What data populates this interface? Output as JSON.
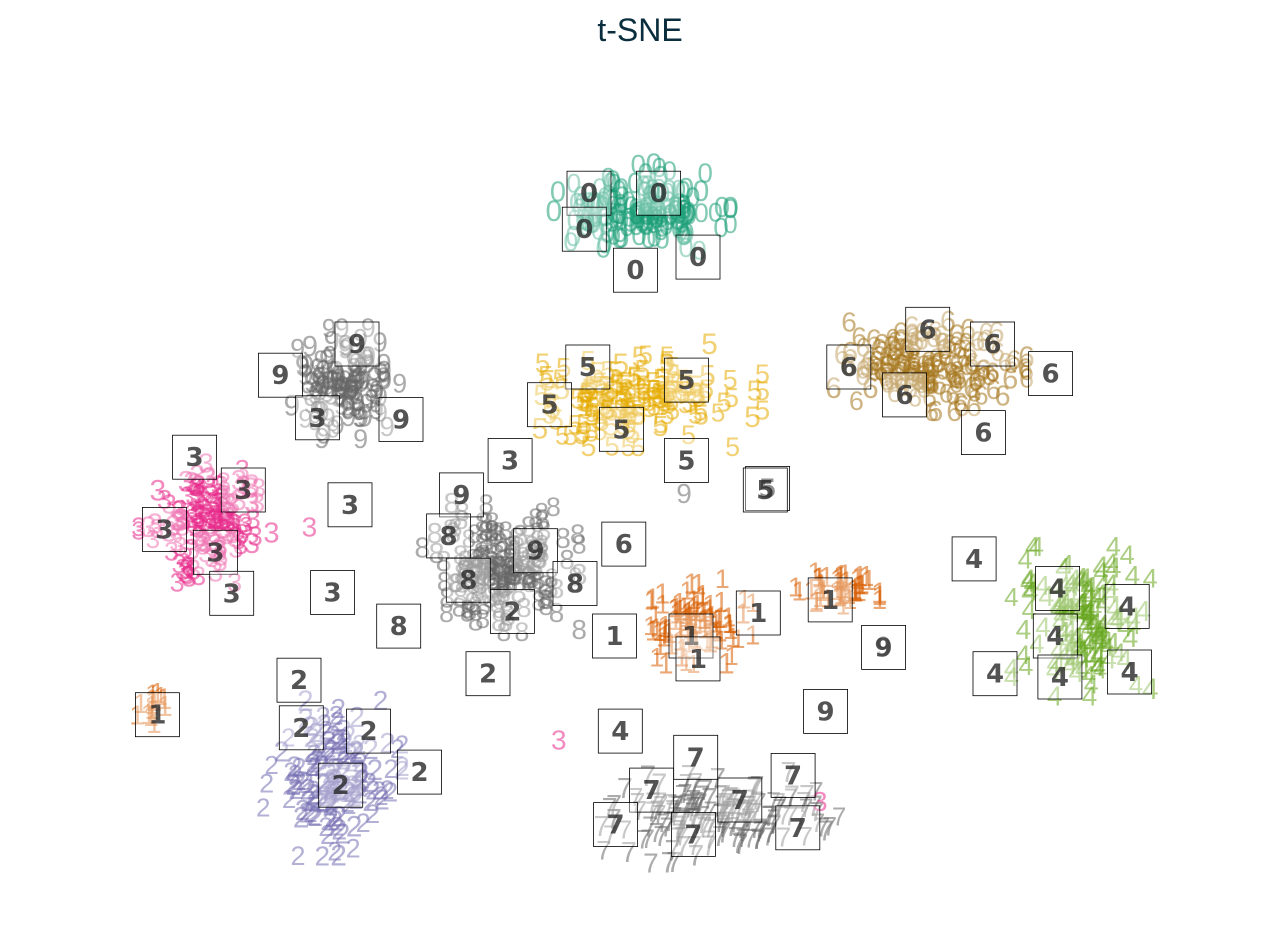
{
  "title": "t-SNE",
  "chart_data": {
    "type": "scatter",
    "title": "t-SNE",
    "xlabel": "",
    "ylabel": "",
    "xlim": [
      0,
      100
    ],
    "ylim": [
      0,
      100
    ],
    "grid": false,
    "axes_visible": false,
    "marker": "digit label",
    "colors": {
      "0": "#1b9e77",
      "1": "#d95f02",
      "2": "#7570b3",
      "3": "#e7298a",
      "4": "#66a61e",
      "5": "#e6ab02",
      "6": "#a6761d",
      "7": "#666666",
      "8": "#666666",
      "9": "#666666"
    },
    "clusters": [
      {
        "label": "0",
        "center": [
          50,
          84
        ],
        "spread": [
          6.0,
          4.4
        ],
        "count": 160
      },
      {
        "label": "1",
        "center": [
          54.5,
          34
        ],
        "spread": [
          4.0,
          4.0
        ],
        "count": 90
      },
      {
        "label": "1",
        "center": [
          67,
          38
        ],
        "spread": [
          2.8,
          2.2
        ],
        "count": 45
      },
      {
        "label": "1",
        "center": [
          8,
          23.5
        ],
        "spread": [
          1.2,
          1.5
        ],
        "count": 14
      },
      {
        "label": "2",
        "center": [
          23.5,
          15
        ],
        "spread": [
          4.6,
          7.4
        ],
        "count": 150
      },
      {
        "label": "3",
        "center": [
          12.5,
          46
        ],
        "spread": [
          4.4,
          5.6
        ],
        "count": 140
      },
      {
        "label": "4",
        "center": [
          88,
          34
        ],
        "spread": [
          4.6,
          7.0
        ],
        "count": 140
      },
      {
        "label": "5",
        "center": [
          49.5,
          61.5
        ],
        "spread": [
          8.5,
          4.8
        ],
        "count": 150
      },
      {
        "label": "6",
        "center": [
          75,
          65
        ],
        "spread": [
          6.4,
          4.2
        ],
        "count": 150
      },
      {
        "label": "7",
        "center": [
          56.5,
          10
        ],
        "spread": [
          8.2,
          4.2
        ],
        "count": 160
      },
      {
        "label": "8",
        "center": [
          38,
          40.5
        ],
        "spread": [
          5.2,
          6.0
        ],
        "count": 160
      },
      {
        "label": "9",
        "center": [
          24.5,
          63
        ],
        "spread": [
          4.2,
          5.2
        ],
        "count": 110
      }
    ],
    "points": [
      {
        "label": "3",
        "x": 43,
        "y": 19.5
      },
      {
        "label": "3",
        "x": 65.5,
        "y": 12
      },
      {
        "label": "3",
        "x": 21.5,
        "y": 45.5
      },
      {
        "label": "9",
        "x": 53.8,
        "y": 49.6
      },
      {
        "label": "9",
        "x": 71,
        "y": 31
      }
    ],
    "thumbnails": [
      {
        "label": "0",
        "x": 45.6,
        "y": 86.2
      },
      {
        "label": "0",
        "x": 51.6,
        "y": 86.2
      },
      {
        "label": "0",
        "x": 45.2,
        "y": 81.8
      },
      {
        "label": "0",
        "x": 55.0,
        "y": 78.4
      },
      {
        "label": "0",
        "x": 49.6,
        "y": 76.8
      },
      {
        "label": "6",
        "x": 74.8,
        "y": 69.6
      },
      {
        "label": "6",
        "x": 80.4,
        "y": 67.8
      },
      {
        "label": "6",
        "x": 68.0,
        "y": 65.0
      },
      {
        "label": "6",
        "x": 85.4,
        "y": 64.2
      },
      {
        "label": "6",
        "x": 72.8,
        "y": 61.6
      },
      {
        "label": "6",
        "x": 79.6,
        "y": 57.0
      },
      {
        "label": "9",
        "x": 25.6,
        "y": 67.8
      },
      {
        "label": "9",
        "x": 19.0,
        "y": 64.0
      },
      {
        "label": "3",
        "x": 22.2,
        "y": 58.8
      },
      {
        "label": "9",
        "x": 29.4,
        "y": 58.6
      },
      {
        "label": "5",
        "x": 45.5,
        "y": 65.0
      },
      {
        "label": "5",
        "x": 54.0,
        "y": 63.4
      },
      {
        "label": "5",
        "x": 42.2,
        "y": 60.4
      },
      {
        "label": "5",
        "x": 48.4,
        "y": 57.4
      },
      {
        "label": "5",
        "x": 54.0,
        "y": 53.6
      },
      {
        "label": "5",
        "x": 61.0,
        "y": 50.2
      },
      {
        "label": "3",
        "x": 11.6,
        "y": 54.0
      },
      {
        "label": "3",
        "x": 38.8,
        "y": 53.6
      },
      {
        "label": "3",
        "x": 15.8,
        "y": 50.0
      },
      {
        "label": "3",
        "x": 25.0,
        "y": 48.2
      },
      {
        "label": "3",
        "x": 9.0,
        "y": 45.2
      },
      {
        "label": "3",
        "x": 13.4,
        "y": 42.4
      },
      {
        "label": "3",
        "x": 14.8,
        "y": 37.4
      },
      {
        "label": "3",
        "x": 23.5,
        "y": 37.5
      },
      {
        "label": "9",
        "x": 34.6,
        "y": 49.4
      },
      {
        "label": "8",
        "x": 33.5,
        "y": 44.4
      },
      {
        "label": "9",
        "x": 41.0,
        "y": 42.6
      },
      {
        "label": "6",
        "x": 48.6,
        "y": 43.4
      },
      {
        "label": "8",
        "x": 35.2,
        "y": 39.0
      },
      {
        "label": "8",
        "x": 44.4,
        "y": 38.6
      },
      {
        "label": "2",
        "x": 39.0,
        "y": 35.2
      },
      {
        "label": "8",
        "x": 29.2,
        "y": 33.4
      },
      {
        "label": "4",
        "x": 78.8,
        "y": 41.6
      },
      {
        "label": "4",
        "x": 86.0,
        "y": 38.0
      },
      {
        "label": "4",
        "x": 92.0,
        "y": 35.8
      },
      {
        "label": "4",
        "x": 85.8,
        "y": 32.2
      },
      {
        "label": "4",
        "x": 80.6,
        "y": 27.6
      },
      {
        "label": "4",
        "x": 86.2,
        "y": 27.2
      },
      {
        "label": "4",
        "x": 92.2,
        "y": 27.8
      },
      {
        "label": "1",
        "x": 60.2,
        "y": 35.0
      },
      {
        "label": "1",
        "x": 54.4,
        "y": 32.2
      },
      {
        "label": "1",
        "x": 47.8,
        "y": 32.2
      },
      {
        "label": "1",
        "x": 55.0,
        "y": 29.4
      },
      {
        "label": "1",
        "x": 66.4,
        "y": 36.6
      },
      {
        "label": "1",
        "x": 8.4,
        "y": 22.6
      },
      {
        "label": "9",
        "x": 71.0,
        "y": 30.8
      },
      {
        "label": "9",
        "x": 66.0,
        "y": 23.0
      },
      {
        "label": "2",
        "x": 20.6,
        "y": 26.8
      },
      {
        "label": "2",
        "x": 20.8,
        "y": 21.0
      },
      {
        "label": "2",
        "x": 26.6,
        "y": 20.6
      },
      {
        "label": "2",
        "x": 31.0,
        "y": 15.6
      },
      {
        "label": "2",
        "x": 24.2,
        "y": 14.0
      },
      {
        "label": "2",
        "x": 36.9,
        "y": 27.6
      },
      {
        "label": "4",
        "x": 48.3,
        "y": 20.6
      },
      {
        "label": "7",
        "x": 54.8,
        "y": 17.4
      },
      {
        "label": "7",
        "x": 51.0,
        "y": 13.4
      },
      {
        "label": "7",
        "x": 58.6,
        "y": 12.2
      },
      {
        "label": "7",
        "x": 63.2,
        "y": 15.2
      },
      {
        "label": "7",
        "x": 47.9,
        "y": 9.2
      },
      {
        "label": "7",
        "x": 54.6,
        "y": 8.0
      },
      {
        "label": "7",
        "x": 63.6,
        "y": 8.8
      },
      {
        "label": "8",
        "x": 29.2,
        "y": 33.4
      },
      {
        "label": "5",
        "x": 60.8,
        "y": 50.0
      }
    ]
  }
}
